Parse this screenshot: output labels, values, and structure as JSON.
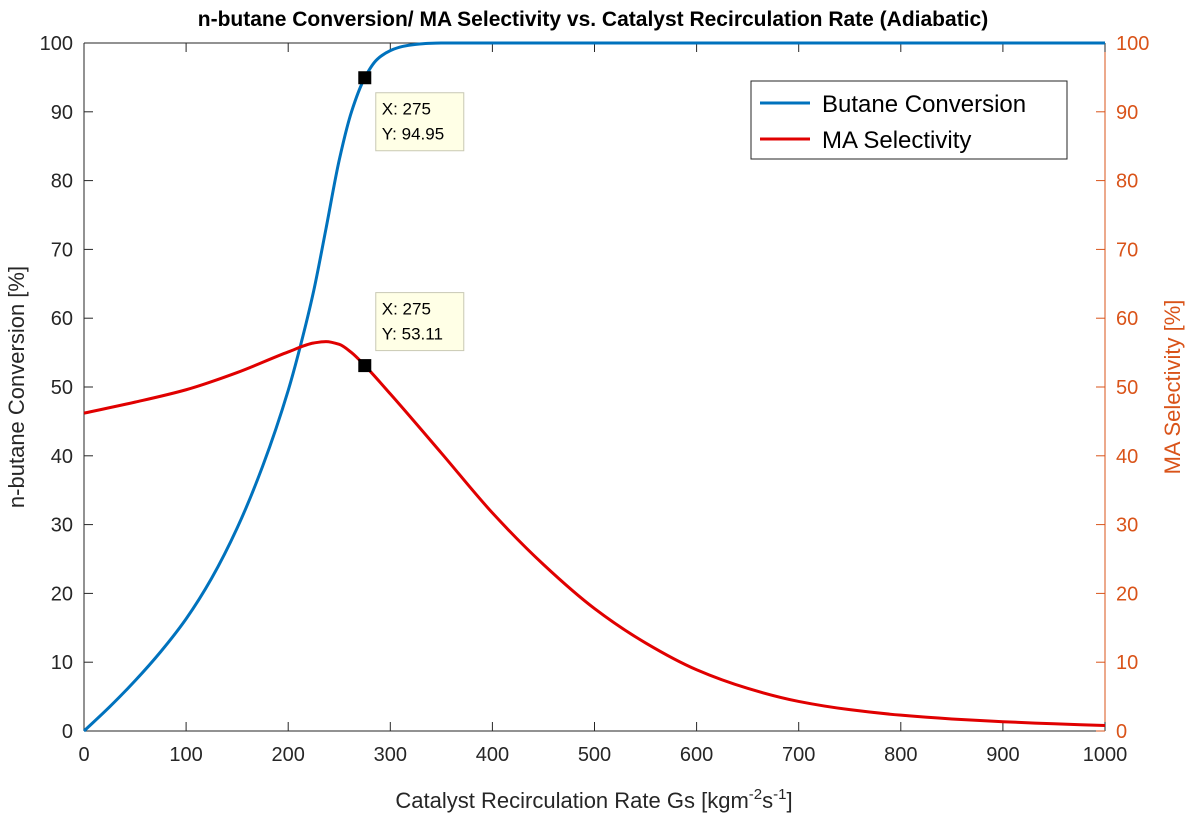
{
  "chart_data": {
    "type": "line",
    "title": "n-butane Conversion/ MA Selectivity vs. Catalyst Recirculation Rate (Adiabatic)",
    "xlabel": "Catalyst Recirculation Rate Gs [kgm",
    "xlabel_sup1": "-2",
    "xlabel_mid": "s",
    "xlabel_sup2": "-1",
    "xlabel_end": "]",
    "ylabel_left": "n-butane Conversion [%]",
    "ylabel_right": "MA Selectivity [%]",
    "xlim": [
      0,
      1000
    ],
    "ylim_left": [
      0,
      100
    ],
    "ylim_right": [
      0,
      100
    ],
    "xticks": [
      0,
      100,
      200,
      300,
      400,
      500,
      600,
      700,
      800,
      900,
      1000
    ],
    "yticks_left": [
      0,
      10,
      20,
      30,
      40,
      50,
      60,
      70,
      80,
      90,
      100
    ],
    "yticks_right": [
      0,
      10,
      20,
      30,
      40,
      50,
      60,
      70,
      80,
      90,
      100
    ],
    "grid": false,
    "legend_position": "top-right",
    "series": [
      {
        "name": "Butane Conversion",
        "color": "#0072BD",
        "axis": "left",
        "x": [
          0,
          25,
          50,
          75,
          100,
          125,
          150,
          175,
          200,
          212,
          225,
          237,
          250,
          262,
          275,
          287,
          300,
          312,
          325,
          337,
          350,
          400,
          500,
          600,
          700,
          800,
          900,
          1000
        ],
        "y": [
          0,
          3.5,
          7.3,
          11.5,
          16.3,
          22.2,
          29.5,
          38.5,
          49.5,
          56,
          64,
          73,
          83,
          90,
          94.95,
          97.6,
          98.9,
          99.5,
          99.8,
          99.95,
          100,
          100,
          100,
          100,
          100,
          100,
          100,
          100
        ]
      },
      {
        "name": "MA Selectivity",
        "color": "#E00000",
        "axis": "right",
        "x": [
          0,
          50,
          100,
          150,
          200,
          225,
          237,
          250,
          262,
          275,
          300,
          350,
          400,
          450,
          500,
          550,
          600,
          650,
          700,
          750,
          800,
          850,
          900,
          950,
          1000
        ],
        "y": [
          46.2,
          47.8,
          49.6,
          52.1,
          55.1,
          56.4,
          56.6,
          56.2,
          55,
          53.11,
          49,
          40.4,
          31.7,
          24.2,
          17.8,
          12.8,
          8.9,
          6.2,
          4.3,
          3.1,
          2.3,
          1.75,
          1.35,
          1.05,
          0.8
        ]
      }
    ],
    "annotations": [
      {
        "series": "Butane Conversion",
        "x_label": "X: 275",
        "y_label": "Y: 94.95",
        "x": 275,
        "y": 94.95
      },
      {
        "series": "MA Selectivity",
        "x_label": "X: 275",
        "y_label": "Y: 53.11",
        "x": 275,
        "y": 53.11
      }
    ]
  }
}
